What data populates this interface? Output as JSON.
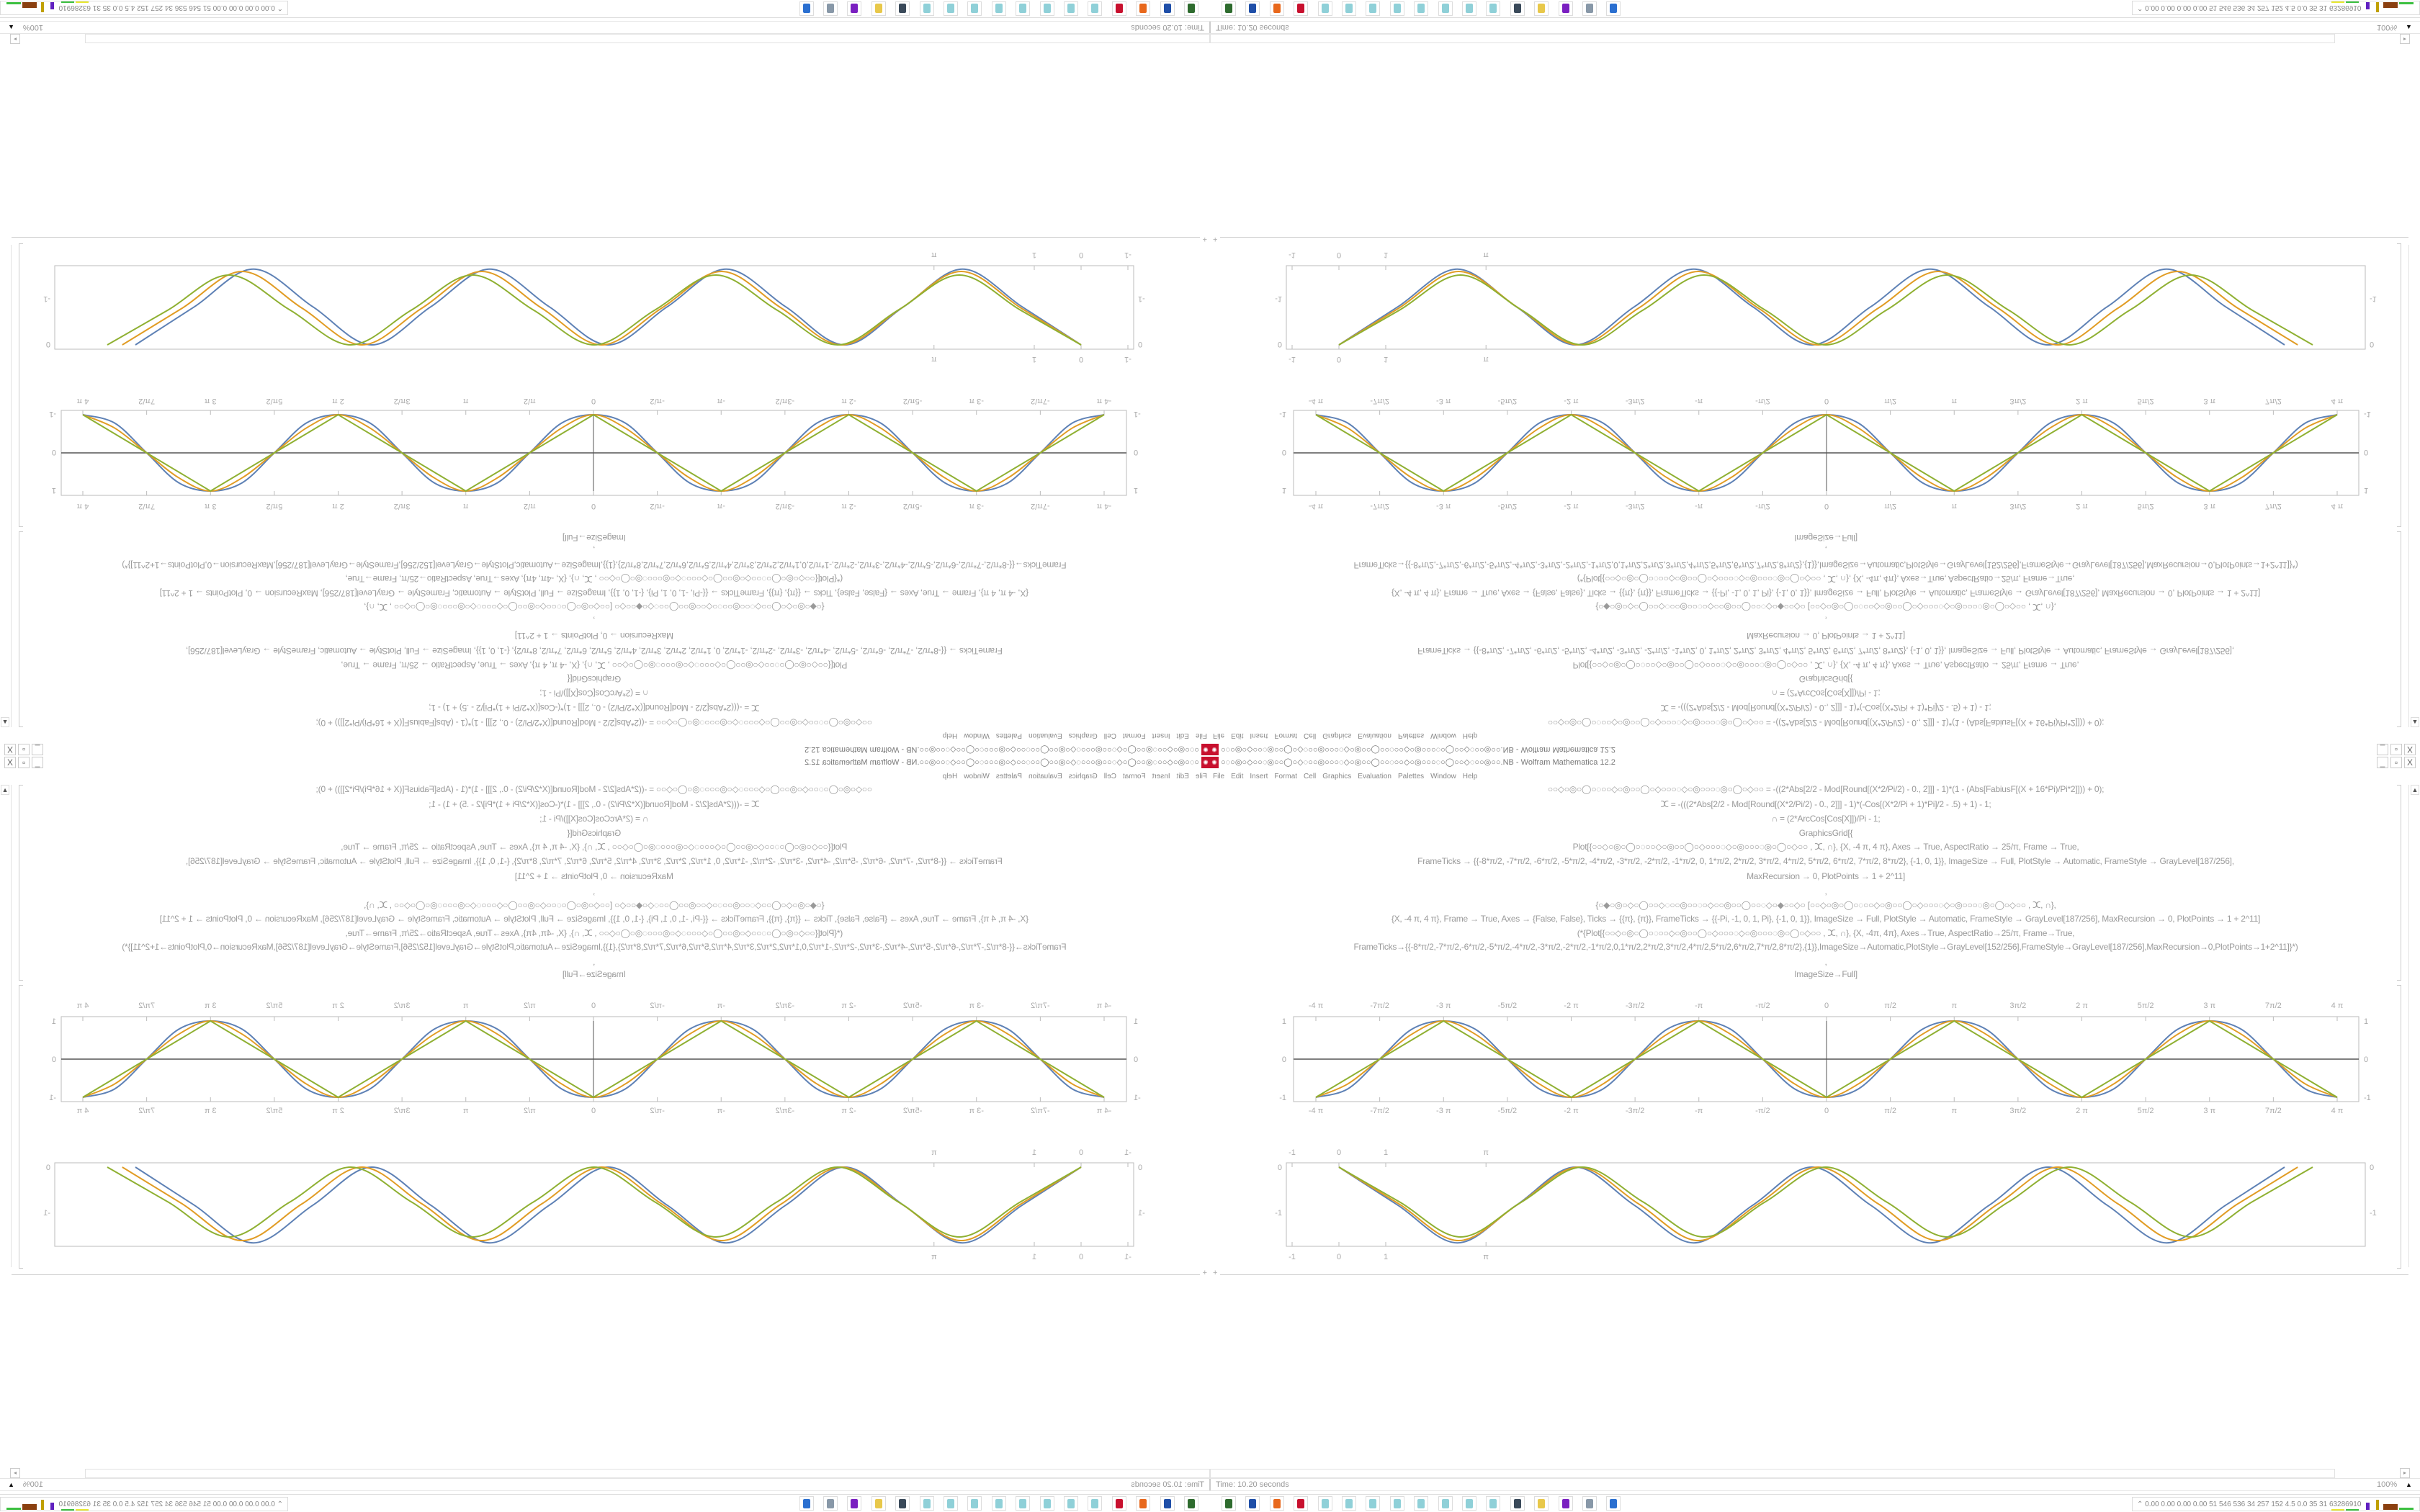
{
  "window": {
    "title": "○◌○◎○◇○○◌◎○○◯○◇◌○○◎○○○◌◇○◎○○◯○○◌○○◇○◎○○○◌○◯○○◇◌○○◎○○.NB - Wolfram Mathematica 12.2",
    "app_icon": "mathematica-icon",
    "controls": [
      "_",
      "▫",
      "X"
    ]
  },
  "menu": [
    "File",
    "Edit",
    "Insert",
    "Format",
    "Cell",
    "Graphics",
    "Evaluation",
    "Palettes",
    "Window",
    "Help"
  ],
  "code": {
    "lines": [
      "○○◇○◎○◯○◌○○◇○◎○○◯○◇○○○◌◇○◎○○○◌◎○◯○◇○○  = -((2*Abs[2/2 - Mod[Round[(X*2/Pi/2) - 0., 2]]] - 1)*(1 - (Abs[FabiusF[(X + 16*Pi)/Pi*2]])) + 0);",
      "ⵋ = -(((2*Abs[2/2 - Mod[Round[(X*2/Pi/2) - 0., 2]]] - 1)*(-Cos[(X*2/Pi + 1)*Pi]/2 - .5) + 1) - 1;",
      "∩ = (2*ArcCos[Cos[X]])/Pi - 1;",
      "GraphicsGrid[{",
      "Plot[{○○◇○◎○◯○◌○○◇○◎○○◯○◇○○○◌◇○◎○○○◌◎○◯○◇○○ , ⵋ, ∩}, {X, -4 π, 4 π}, Axes → True, AspectRatio → 25/π, Frame → True,",
      "FrameTicks → {{-8*π/2, -7*π/2, -6*π/2, -5*π/2, -4*π/2, -3*π/2, -2*π/2, -1*π/2, 0, 1*π/2, 2*π/2, 3*π/2, 4*π/2, 5*π/2, 6*π/2, 7*π/2, 8*π/2}, {-1, 0, 1}}, ImageSize → Full, PlotStyle → Automatic, FrameStyle → GrayLevel[187/256],",
      "MaxRecursion → 0, PlotPoints → 1 + 2^11]",
      ",",
      "{○◆○◎○◇○◯○○◇◌○○◎○○◌○◇○○◎○○◯○○◌◇○◆○○◇○  [○○◇○◎○◯○◌○○◇○◎○○◯○◇○○○◌◇○◎○○○◌◎○◯○◇○○ , ⵋ, ∩},",
      "{X, -4 π, 4 π}, Frame → True, Axes → {False, False}, Ticks → {{π}, {π}}, FrameTicks → {{-Pi, -1, 0, 1, Pi}, {-1, 0, 1}}, ImageSize → Full, PlotStyle → Automatic, FrameStyle → GrayLevel[187/256], MaxRecursion → 0, PlotPoints → 1 + 2^11]",
      "(*{Plot[{○○◇○◎○◯○◌○○◇○◎○○◯○◇○○○◌◇○◎○○○◌◎○◯○◇○○ , ⵋ, ∩}, {X, -4π, 4π}, Axes→True, AspectRatio→25/π, Frame→True,",
      "FrameTicks→{{-8*π/2,-7*π/2,-6*π/2,-5*π/2,-4*π/2,-3*π/2,-2*π/2,-1*π/2,0,1*π/2,2*π/2,3*π/2,4*π/2,5*π/2,6*π/2,7*π/2,8*π/2},{1}},ImageSize→Automatic,PlotStyle→GrayLevel[152/256],FrameStyle→GrayLevel[187/256],MaxRecursion→0,PlotPoints→1+2^11]}*)",
      ",",
      "ImageSize→Full]"
    ]
  },
  "chart_data": [
    {
      "type": "line",
      "x_unit": "π",
      "xlim": [
        -4,
        4
      ],
      "ylim": [
        -1,
        1
      ],
      "x_tick_labels": [
        "-4 π",
        "-7π/2",
        "-3 π",
        "-5π/2",
        "-2 π",
        "-3π/2",
        "-π",
        "-π/2",
        "0",
        "π/2",
        "π",
        "3π/2",
        "2 π",
        "5π/2",
        "3 π",
        "7π/2",
        "4 π"
      ],
      "y_tick_labels": [
        "1",
        "0",
        "-1"
      ],
      "axes": true,
      "frame": true,
      "x": [
        -4,
        -3.75,
        -3.5,
        -3.25,
        -3,
        -2.75,
        -2.5,
        -2.25,
        -2,
        -1.75,
        -1.5,
        -1.25,
        -1,
        -0.75,
        -0.5,
        -0.25,
        0,
        0.25,
        0.5,
        0.75,
        1,
        1.25,
        1.5,
        1.75,
        2,
        2.25,
        2.5,
        2.75,
        3,
        3.25,
        3.5,
        3.75,
        4
      ],
      "series": [
        {
          "color": "#5e81b5",
          "values": [
            -1,
            -0.78,
            0,
            0.78,
            1,
            0.78,
            0,
            -0.78,
            -1,
            -0.78,
            0,
            0.78,
            1,
            0.78,
            0,
            -0.78,
            -1,
            -0.78,
            0,
            0.78,
            1,
            0.78,
            0,
            -0.78,
            -1,
            -0.78,
            0,
            0.78,
            1,
            0.78,
            0,
            -0.78,
            -1
          ]
        },
        {
          "color": "#e19c24",
          "values": [
            -1,
            -0.65,
            0,
            0.65,
            1,
            0.65,
            0,
            -0.65,
            -1,
            -0.65,
            0,
            0.65,
            1,
            0.65,
            0,
            -0.65,
            -1,
            -0.65,
            0,
            0.65,
            1,
            0.65,
            0,
            -0.65,
            -1,
            -0.65,
            0,
            0.65,
            1,
            0.65,
            0,
            -0.65,
            -1
          ]
        },
        {
          "color": "#8fb032",
          "values": [
            -1,
            -0.5,
            0,
            0.5,
            1,
            0.5,
            0,
            -0.5,
            -1,
            -0.5,
            0,
            0.5,
            1,
            0.5,
            0,
            -0.5,
            -1,
            -0.5,
            0,
            0.5,
            1,
            0.5,
            0,
            -0.5,
            -1,
            -0.5,
            0,
            0.5,
            1,
            0.5,
            0,
            -0.5,
            -1
          ]
        }
      ]
    },
    {
      "type": "line",
      "x_tick_labels": [
        "-1",
        "0",
        "1",
        "π"
      ],
      "x_ticks": [
        -1,
        0,
        1,
        3.14159
      ],
      "y_tick_labels": [
        "0",
        "-1"
      ],
      "y_ticks": [
        0,
        -1
      ],
      "xlim": [
        -1.1,
        21.9
      ],
      "ylim": [
        -1.75,
        0.1
      ],
      "frame": true,
      "axes": false,
      "series": [
        {
          "color": "#5e81b5",
          "x": [
            0,
            1.26,
            2.53,
            3.79,
            5.05,
            6.31,
            7.58,
            8.84,
            10.1,
            11.36,
            12.63,
            13.89,
            15.15,
            16.41,
            17.68,
            18.94,
            20.2
          ],
          "y": [
            0,
            -0.84,
            -1.67,
            -0.84,
            0,
            -0.84,
            -1.67,
            -0.84,
            0,
            -0.84,
            -1.67,
            -0.84,
            0,
            -0.84,
            -1.67,
            -0.84,
            0
          ]
        },
        {
          "color": "#e19c24",
          "x": [
            0,
            1.28,
            2.56,
            3.84,
            5.12,
            6.4,
            7.68,
            8.96,
            10.24,
            11.52,
            12.8,
            14.08,
            15.36,
            16.64,
            17.92,
            19.2,
            20.48
          ],
          "y": [
            0,
            -0.81,
            -1.62,
            -0.81,
            0,
            -0.81,
            -1.62,
            -0.81,
            0,
            -0.81,
            -1.62,
            -0.81,
            0,
            -0.81,
            -1.62,
            -0.81,
            0
          ]
        },
        {
          "color": "#8fb032",
          "x": [
            0,
            1.3,
            2.6,
            3.9,
            5.2,
            6.5,
            7.8,
            9.1,
            10.4,
            11.7,
            13,
            14.3,
            15.6,
            16.9,
            18.2,
            19.5,
            20.8
          ],
          "y": [
            0,
            -0.77,
            -1.54,
            -0.77,
            0,
            -0.77,
            -1.54,
            -0.77,
            0,
            -0.77,
            -1.54,
            -0.77,
            0,
            -0.77,
            -1.54,
            -0.77,
            0
          ]
        }
      ]
    }
  ],
  "status": {
    "time": "Time: 10.20 seconds",
    "zoom": "100%",
    "zoom_menu_icon": "triangle-up-icon"
  },
  "taskbar": {
    "icons": [
      {
        "name": "terminal-app-icon",
        "color": "#2e6b2e"
      },
      {
        "name": "save-disk-icon",
        "color": "#1f4fa8"
      },
      {
        "name": "firefox-icon",
        "color": "#e8681c"
      },
      {
        "name": "mathematica-icon",
        "color": "#c8102e"
      },
      {
        "name": "document-icon",
        "color": "#8fd0d8"
      },
      {
        "name": "document-icon",
        "color": "#8fd0d8"
      },
      {
        "name": "document-icon",
        "color": "#8fd0d8"
      },
      {
        "name": "document-icon",
        "color": "#8fd0d8"
      },
      {
        "name": "document-icon",
        "color": "#8fd0d8"
      },
      {
        "name": "document-icon",
        "color": "#8fd0d8"
      },
      {
        "name": "document-icon",
        "color": "#8fd0d8"
      },
      {
        "name": "document-icon",
        "color": "#8fd0d8"
      },
      {
        "name": "phone-icon",
        "color": "#3a4a5a"
      },
      {
        "name": "note-icon",
        "color": "#e8c84a"
      },
      {
        "name": "purple-app-icon",
        "color": "#7a1fc0"
      },
      {
        "name": "storage-icon",
        "color": "#8898a8"
      },
      {
        "name": "window-icon",
        "color": "#2a6fd0"
      }
    ],
    "tray_text": "⌃  0.00 0.00 0.00 0.00  51  546  536  34  257  152  4.5  0.0  35  31  63286910"
  }
}
